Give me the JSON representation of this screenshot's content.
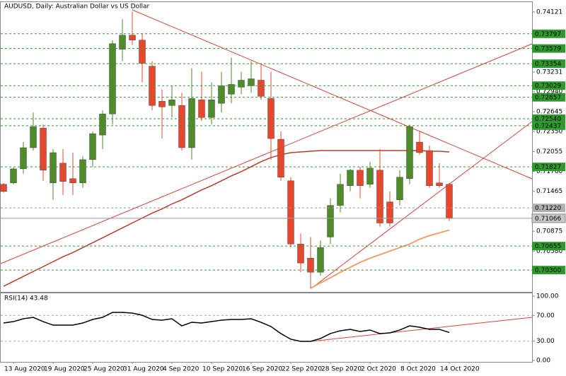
{
  "chart_data": [
    {
      "type": "candlestick",
      "title": "AUDUSD, Daily:  Australian Dollar vs US Dollar",
      "categories": [
        null,
        "13 Aug 2020",
        null,
        null,
        null,
        "19 Aug 2020",
        null,
        null,
        null,
        "25 Aug 2020",
        null,
        null,
        null,
        "31 Aug 2020",
        null,
        null,
        null,
        "4 Sep 2020",
        null,
        null,
        null,
        "10 Sep 2020",
        null,
        null,
        null,
        "16 Sep 2020",
        null,
        null,
        null,
        "22 Sep 2020",
        null,
        null,
        null,
        "28 Sep 2020",
        null,
        null,
        null,
        "2 Oct 2020",
        null,
        null,
        null,
        "8 Oct 2020",
        null,
        null,
        null,
        "14 Oct 2020"
      ],
      "open": [
        0.71569,
        0.7159,
        0.71798,
        0.72111,
        0.72402,
        0.7159,
        0.71882,
        0.71653,
        0.7159,
        0.71934,
        0.72298,
        0.7261,
        0.73568,
        0.73776,
        0.73703,
        0.73318,
        0.72798,
        0.72735,
        0.72735,
        0.72111,
        0.72819,
        0.72558,
        0.72767,
        0.72902,
        0.73006,
        0.73027,
        0.7311,
        0.72839,
        0.72236,
        0.71621,
        0.70685,
        0.70476,
        0.70268,
        0.70789,
        0.71257,
        0.71549,
        0.71778,
        0.71569,
        0.71778,
        0.71309,
        0.7134,
        0.71653,
        0.72194,
        0.72069,
        0.7159,
        0.71569
      ],
      "high": [
        0.7159,
        0.71819,
        0.72194,
        0.72631,
        0.72454,
        0.7209,
        0.7209,
        0.72038,
        0.71986,
        0.7235,
        0.72662,
        0.73703,
        0.74016,
        0.74121,
        0.73808,
        0.73391,
        0.72975,
        0.73027,
        0.72923,
        0.73287,
        0.73235,
        0.73079,
        0.73235,
        0.73443,
        0.73235,
        0.73391,
        0.73339,
        0.73235,
        0.7235,
        0.71674,
        0.70841,
        0.70789,
        0.70737,
        0.71361,
        0.71726,
        0.71798,
        0.7183,
        0.71903,
        0.7209,
        0.71465,
        0.71778,
        0.72454,
        0.7235,
        0.72142,
        0.71882,
        0.7159
      ],
      "low": [
        0.71445,
        0.71569,
        0.71726,
        0.72069,
        0.71621,
        0.7134,
        0.71413,
        0.71413,
        0.71517,
        0.7183,
        0.7209,
        0.72454,
        0.73391,
        0.73631,
        0.73079,
        0.72662,
        0.72246,
        0.72558,
        0.72069,
        0.71934,
        0.72506,
        0.72454,
        0.72631,
        0.72767,
        0.72902,
        0.72923,
        0.72819,
        0.71934,
        0.71621,
        0.70633,
        0.70268,
        0.70029,
        0.70216,
        0.70685,
        0.71153,
        0.71465,
        0.71361,
        0.71517,
        0.70945,
        0.70945,
        0.71257,
        0.71569,
        0.72007,
        0.71517,
        0.71517,
        0.71028
      ],
      "close": [
        0.71465,
        0.71798,
        0.72111,
        0.72423,
        0.71778,
        0.72038,
        0.71611,
        0.7159,
        0.71934,
        0.72319,
        0.7261,
        0.73651,
        0.73776,
        0.73703,
        0.7336,
        0.72735,
        0.72715,
        0.72819,
        0.72111,
        0.72839,
        0.72558,
        0.72819,
        0.73027,
        0.73048,
        0.7311,
        0.73131,
        0.72871,
        0.72246,
        0.71674,
        0.70685,
        0.70404,
        0.70268,
        0.70633,
        0.71257,
        0.71569,
        0.71778,
        0.71549,
        0.71809,
        0.70997,
        0.70997,
        0.71674,
        0.72423,
        0.72038,
        0.71549,
        0.71549,
        0.71066
      ],
      "up_color": "#4f8a2b",
      "down_color": "#e8472e",
      "series": [
        {
          "color": "#c0392b",
          "values": [
            0.7006,
            0.70133,
            0.70206,
            0.70279,
            0.70351,
            0.70424,
            0.70497,
            0.7056,
            0.70633,
            0.70705,
            0.70778,
            0.70851,
            0.70924,
            0.70997,
            0.7107,
            0.71143,
            0.71205,
            0.71278,
            0.7134,
            0.71413,
            0.71486,
            0.71549,
            0.71621,
            0.71694,
            0.71757,
            0.7183,
            0.71903,
            0.71965,
            0.72007,
            0.72038,
            0.72048,
            0.72059,
            0.72069,
            0.72069,
            0.72069,
            0.72069,
            0.72069,
            0.72069,
            0.72069,
            0.72069,
            0.72069,
            0.72069,
            0.72069,
            0.72059,
            0.72059,
            0.72048
          ]
        },
        {
          "color": "#f4a06a",
          "values": [
            null,
            null,
            null,
            null,
            null,
            null,
            null,
            null,
            null,
            null,
            null,
            null,
            null,
            null,
            null,
            null,
            null,
            null,
            null,
            null,
            null,
            null,
            null,
            null,
            null,
            null,
            null,
            null,
            null,
            null,
            null,
            0.70029,
            0.70112,
            0.70185,
            0.70268,
            0.70341,
            0.70414,
            0.70476,
            0.70528,
            0.7058,
            0.70633,
            0.70685,
            0.70757,
            0.7081,
            0.70851,
            0.70893
          ]
        }
      ],
      "ylim": [
        0.69977,
        0.74276
      ],
      "yticks": [
        0.74121,
        0.73231,
        {
          "value": 0.7294,
          "label": "0.72940"
        },
        0.72645,
        {
          "value": 0.7235,
          "label": "0.72350"
        },
        0.72055,
        {
          "value": 0.7176,
          "label": "0.71760"
        },
        0.71465,
        0.70875,
        {
          "value": 0.7058,
          "label": "0.70580"
        }
      ],
      "levels": [
        0.73797,
        0.73579,
        0.73354,
        0.73029,
        0.72857,
        {
          "value": 0.7254,
          "label": "0.72540"
        },
        0.72437,
        0.71827,
        {
          "value": 0.7122,
          "label": "0.71220"
        },
        0.70655,
        {
          "value": 0.703,
          "label": "0.70300"
        }
      ],
      "level_colors": [
        "#2e9a2e",
        "#2e9a2e",
        "#2e9a2e",
        "#2e9a2e",
        "#2e9a2e",
        "#2e9a2e",
        "#2e9a2e",
        "#2e9a2e",
        "#b0b0b0",
        "#2e9a2e",
        "#2e9a2e"
      ],
      "last_price": 0.71066
    },
    {
      "type": "line",
      "title": "RSI(14) 43.48",
      "color": "#000000",
      "values": [
        58.2,
        60.4,
        64.8,
        67.0,
        60.4,
        54.9,
        54.9,
        54.9,
        58.2,
        63.7,
        67.0,
        74.7,
        74.7,
        73.6,
        70.3,
        63.7,
        62.6,
        64.8,
        53.8,
        59.3,
        58.2,
        60.4,
        62.6,
        63.7,
        63.7,
        64.8,
        59.3,
        52.7,
        41.8,
        33.0,
        29.7,
        29.7,
        34.1,
        41.8,
        46.2,
        48.4,
        45.1,
        47.3,
        41.8,
        42.9,
        47.3,
        53.8,
        51.6,
        48.4,
        48.4,
        43.48
      ],
      "ylim": [
        0,
        100
      ],
      "yticks": [
        {
          "value": 100,
          "label": "100.00"
        },
        {
          "value": 70,
          "label": "70.00"
        },
        {
          "value": 30,
          "label": "30.00"
        },
        {
          "value": 0,
          "label": "0.00"
        }
      ]
    }
  ]
}
